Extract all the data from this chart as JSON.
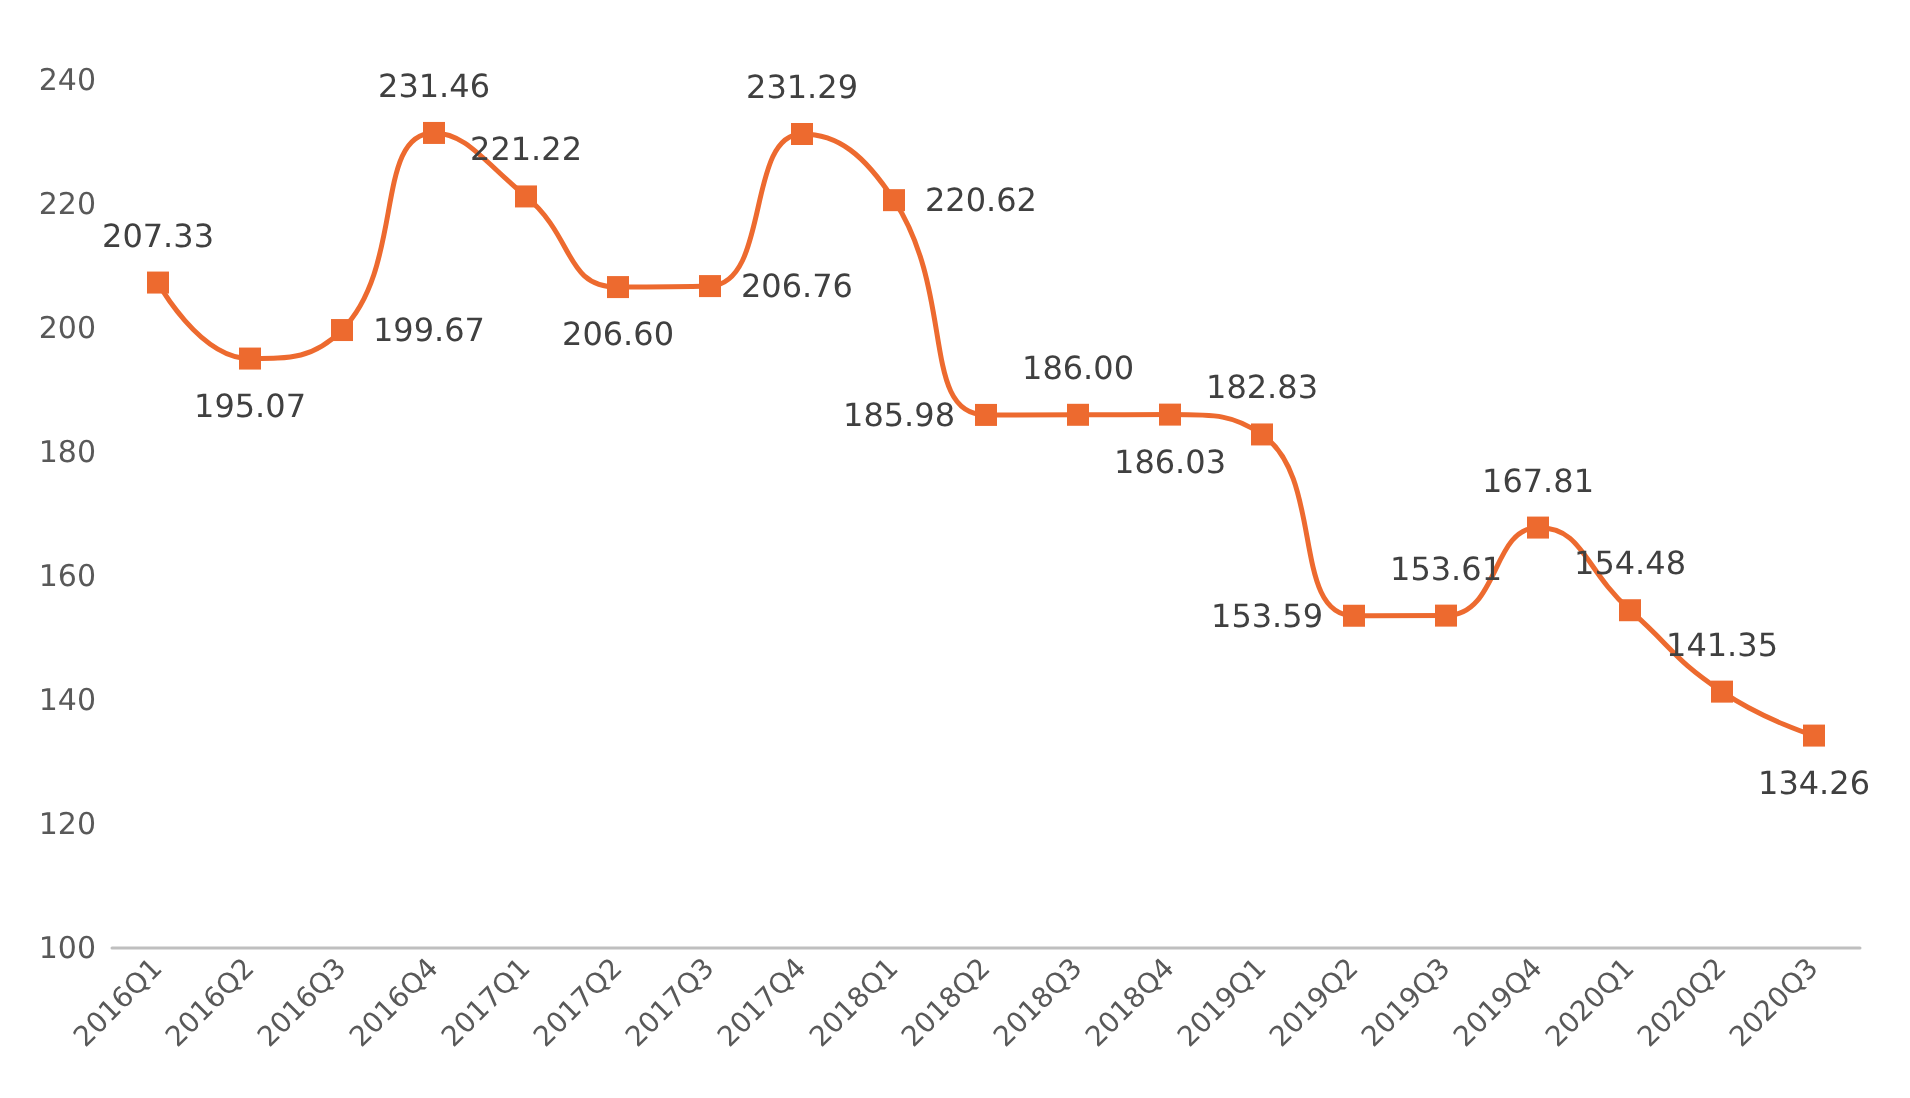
{
  "chart_data": {
    "type": "line",
    "categories": [
      "2016Q1",
      "2016Q2",
      "2016Q3",
      "2016Q4",
      "2017Q1",
      "2017Q2",
      "2017Q3",
      "2017Q4",
      "2018Q1",
      "2018Q2",
      "2018Q3",
      "2018Q4",
      "2019Q1",
      "2019Q2",
      "2019Q3",
      "2019Q4",
      "2020Q1",
      "2020Q2",
      "2020Q3"
    ],
    "series": [
      {
        "color": "#ed6a2f",
        "values": [
          207.33,
          195.07,
          199.67,
          231.46,
          221.22,
          206.6,
          206.76,
          231.29,
          220.62,
          185.98,
          186.0,
          186.03,
          182.83,
          153.59,
          153.61,
          167.81,
          154.48,
          141.35,
          134.26
        ],
        "value_labels": [
          "207.33",
          "195.07",
          "199.67",
          "231.46",
          "221.22",
          "206.60",
          "206.76",
          "231.29",
          "220.62",
          "185.98",
          "186.00",
          "186.03",
          "182.83",
          "153.59",
          "153.61",
          "167.81",
          "154.48",
          "141.35",
          "134.26"
        ]
      }
    ],
    "ylim": [
      100,
      240
    ],
    "yticks": [
      100,
      120,
      140,
      160,
      180,
      200,
      220,
      240
    ],
    "grid": false,
    "marker": "square",
    "line_style": "solid"
  }
}
